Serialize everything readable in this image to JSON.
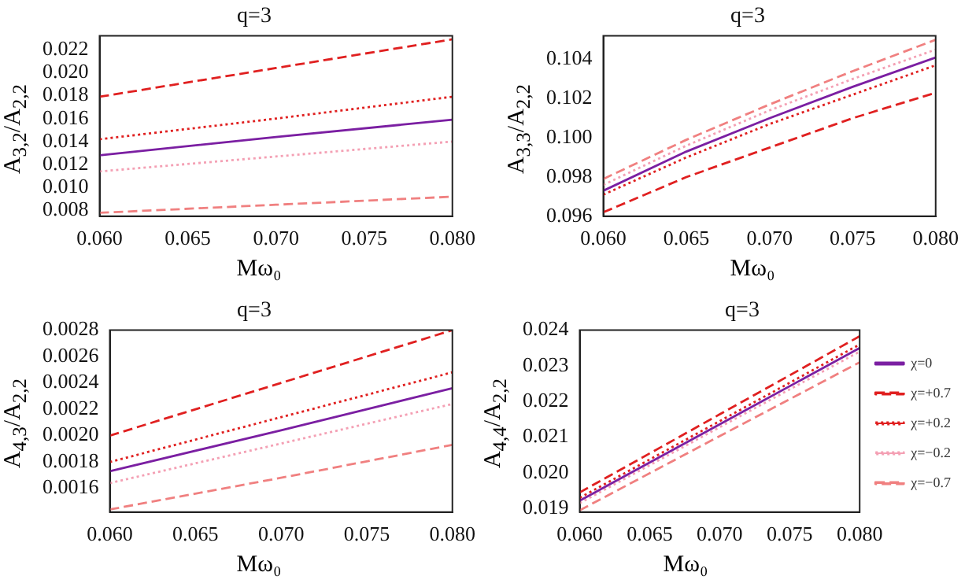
{
  "chart_data": [
    {
      "type": "line",
      "title": "q=3",
      "xlabel": "Mω₀",
      "ylabel": "A$_{3,2}$/A$_{2,2}$",
      "marker": "none",
      "grid": false,
      "x": [
        0.06,
        0.07,
        0.08
      ],
      "xlim": [
        0.06,
        0.08
      ],
      "xticks": [
        {
          "value": 0.06,
          "label": "0.060"
        },
        {
          "value": 0.065,
          "label": "0.065"
        },
        {
          "value": 0.07,
          "label": "0.070"
        },
        {
          "value": 0.075,
          "label": "0.075"
        },
        {
          "value": 0.08,
          "label": "0.080"
        }
      ],
      "ylim": [
        0.0075,
        0.0232
      ],
      "yticks": [
        0.008,
        {
          "value": 0.01,
          "label": "0.010"
        },
        0.012,
        0.014,
        0.016,
        0.018,
        {
          "value": 0.02,
          "label": "0.020"
        },
        0.022
      ],
      "series": [
        {
          "color": "#7b1fa2",
          "line_style": "solid",
          "values": [
            0.0128,
            0.0144,
            0.0159
          ]
        },
        {
          "color": "#e02020",
          "line_style": "dashed",
          "values": [
            0.0179,
            0.0204,
            0.0229
          ]
        },
        {
          "color": "#e02020",
          "line_style": "dotted",
          "values": [
            0.0142,
            0.016,
            0.0179
          ]
        },
        {
          "color": "#f4a0b4",
          "line_style": "dotted",
          "values": [
            0.0114,
            0.0127,
            0.014
          ]
        },
        {
          "color": "#f08080",
          "line_style": "dashed",
          "values": [
            0.0078,
            0.0085,
            0.0092
          ]
        }
      ]
    },
    {
      "type": "line",
      "title": "q=3",
      "xlabel": "Mω₀",
      "ylabel": "A$_{3,3}$/A$_{2,2}$",
      "marker": "none",
      "grid": false,
      "x": [
        0.06,
        0.065,
        0.07,
        0.075,
        0.08
      ],
      "xlim": [
        0.06,
        0.08
      ],
      "xticks": [
        {
          "value": 0.06,
          "label": "0.060"
        },
        {
          "value": 0.065,
          "label": "0.065"
        },
        {
          "value": 0.07,
          "label": "0.070"
        },
        {
          "value": 0.075,
          "label": "0.075"
        },
        {
          "value": 0.08,
          "label": "0.080"
        }
      ],
      "ylim": [
        0.096,
        0.1052
      ],
      "yticks": [
        0.096,
        0.098,
        {
          "value": 0.1,
          "label": "0.100"
        },
        0.102,
        0.104
      ],
      "series": [
        {
          "color": "#7b1fa2",
          "line_style": "solid",
          "values": [
            0.0973,
            0.0993,
            0.101,
            0.1026,
            0.1041
          ]
        },
        {
          "color": "#e02020",
          "line_style": "dashed",
          "values": [
            0.0962,
            0.098,
            0.0995,
            0.101,
            0.1023
          ]
        },
        {
          "color": "#e02020",
          "line_style": "dotted",
          "values": [
            0.0971,
            0.099,
            0.1007,
            0.1022,
            0.1037
          ]
        },
        {
          "color": "#f4a0b4",
          "line_style": "dotted",
          "values": [
            0.0976,
            0.0996,
            0.1014,
            0.103,
            0.1045
          ]
        },
        {
          "color": "#f08080",
          "line_style": "dashed",
          "values": [
            0.0979,
            0.0999,
            0.1017,
            0.1034,
            0.105
          ]
        }
      ]
    },
    {
      "type": "line",
      "title": "q=3",
      "xlabel": "Mω₀",
      "ylabel": "A$_{4,3}$/A$_{2,2}$",
      "marker": "none",
      "grid": false,
      "x": [
        0.06,
        0.07,
        0.08
      ],
      "xlim": [
        0.06,
        0.08
      ],
      "xticks": [
        {
          "value": 0.06,
          "label": "0.060"
        },
        {
          "value": 0.065,
          "label": "0.065"
        },
        {
          "value": 0.07,
          "label": "0.070"
        },
        {
          "value": 0.075,
          "label": "0.075"
        },
        {
          "value": 0.08,
          "label": "0.080"
        }
      ],
      "ylim": [
        0.00142,
        0.0028
      ],
      "yticks": [
        0.0016,
        0.0018,
        {
          "value": 0.002,
          "label": "0.0020"
        },
        0.0022,
        0.0024,
        0.0026,
        0.0028
      ],
      "series": [
        {
          "color": "#7b1fa2",
          "line_style": "solid",
          "values": [
            0.00173,
            0.00204,
            0.00236
          ]
        },
        {
          "color": "#e02020",
          "line_style": "dashed",
          "values": [
            0.002,
            0.0024,
            0.0028
          ]
        },
        {
          "color": "#e02020",
          "line_style": "dotted",
          "values": [
            0.0018,
            0.00214,
            0.00248
          ]
        },
        {
          "color": "#f4a0b4",
          "line_style": "dotted",
          "values": [
            0.00164,
            0.00194,
            0.00224
          ]
        },
        {
          "color": "#f08080",
          "line_style": "dashed",
          "values": [
            0.00144,
            0.00168,
            0.00193
          ]
        }
      ]
    },
    {
      "type": "line",
      "title": "q=3",
      "xlabel": "Mω₀",
      "ylabel": "A$_{4,4}$/A$_{2,2}$",
      "marker": "none",
      "grid": false,
      "legend": "right",
      "x": [
        0.06,
        0.07,
        0.08
      ],
      "xlim": [
        0.06,
        0.08
      ],
      "xticks": [
        {
          "value": 0.06,
          "label": "0.060"
        },
        {
          "value": 0.065,
          "label": "0.065"
        },
        {
          "value": 0.07,
          "label": "0.070"
        },
        {
          "value": 0.075,
          "label": "0.075"
        },
        {
          "value": 0.08,
          "label": "0.080"
        }
      ],
      "ylim": [
        0.0189,
        0.024
      ],
      "yticks": [
        0.019,
        {
          "value": 0.02,
          "label": "0.020"
        },
        0.021,
        0.022,
        0.023,
        0.024
      ],
      "series": [
        {
          "name": "χ=0",
          "color": "#7b1fa2",
          "line_style": "solid",
          "values": [
            0.01922,
            0.02136,
            0.0235
          ]
        },
        {
          "name": "χ=+0.7",
          "color": "#e02020",
          "line_style": "dashed",
          "values": [
            0.01945,
            0.02164,
            0.02383
          ]
        },
        {
          "name": "χ=+0.2",
          "color": "#e02020",
          "line_style": "dotted",
          "values": [
            0.0193,
            0.02145,
            0.0236
          ]
        },
        {
          "name": "χ=−0.2",
          "color": "#f4a0b4",
          "line_style": "dotted",
          "values": [
            0.01915,
            0.02128,
            0.0234
          ]
        },
        {
          "name": "χ=−0.7",
          "color": "#f08080",
          "line_style": "dashed",
          "values": [
            0.01895,
            0.02103,
            0.0231
          ]
        }
      ]
    }
  ]
}
